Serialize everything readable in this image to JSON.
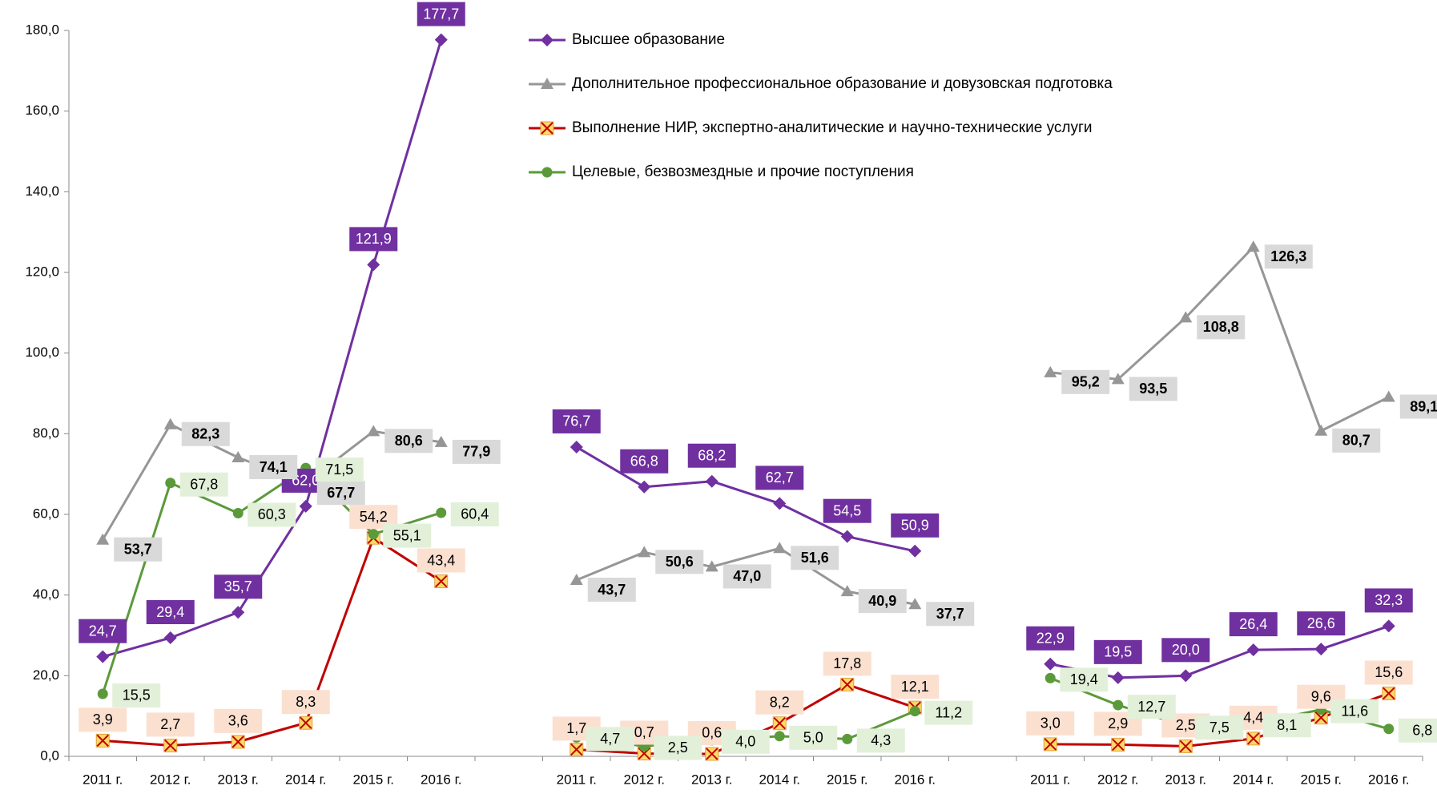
{
  "chart_data": {
    "type": "line",
    "categories": [
      "2011 г.",
      "2012 г.",
      "2013 г.",
      "2014 г.",
      "2015 г.",
      "2016 г.",
      null,
      "2011 г.",
      "2012 г.",
      "2013 г.",
      "2014 г.",
      "2015 г.",
      "2016 г.",
      null,
      "2011 г.",
      "2012 г.",
      "2013 г.",
      "2014 г.",
      "2015 г.",
      "2016 г."
    ],
    "ylim": [
      0,
      180
    ],
    "yticks": [
      {
        "value": 0,
        "label": "0,0"
      },
      {
        "value": 20,
        "label": "20,0"
      },
      {
        "value": 40,
        "label": "40,0"
      },
      {
        "value": 60,
        "label": "60,0"
      },
      {
        "value": 80,
        "label": "80,0"
      },
      {
        "value": 100,
        "label": "100,0"
      },
      {
        "value": 120,
        "label": "120,0"
      },
      {
        "value": 140,
        "label": "140,0"
      },
      {
        "value": 160,
        "label": "160,0"
      },
      {
        "value": 180,
        "label": "180,0"
      }
    ],
    "series": [
      {
        "name": "Высшее образование",
        "color": "#7030a0",
        "marker": "diamond",
        "values": [
          24.7,
          29.4,
          35.7,
          62.0,
          121.9,
          177.7,
          null,
          76.7,
          66.8,
          68.2,
          62.7,
          54.5,
          50.9,
          null,
          22.9,
          19.5,
          20.0,
          26.4,
          26.6,
          32.3
        ],
        "value_labels": [
          "24,7",
          "29,4",
          "35,7",
          "62,0",
          "121,9",
          "177,7",
          null,
          "76,7",
          "66,8",
          "68,2",
          "62,7",
          "54,5",
          "50,9",
          null,
          "22,9",
          "19,5",
          "20,0",
          "26,4",
          "26,6",
          "32,3"
        ]
      },
      {
        "name": "Дополнительное профессиональное образование и довузовская подготовка",
        "color": "#969696",
        "marker": "triangle",
        "values": [
          53.7,
          82.3,
          74.1,
          67.7,
          80.6,
          77.9,
          null,
          43.7,
          50.6,
          47.0,
          51.6,
          40.9,
          37.7,
          null,
          95.2,
          93.5,
          108.8,
          126.3,
          80.7,
          89.1
        ],
        "value_labels": [
          "53,7",
          "82,3",
          "74,1",
          "67,7",
          "80,6",
          "77,9",
          null,
          "43,7",
          "50,6",
          "47,0",
          "51,6",
          "40,9",
          "37,7",
          null,
          "95,2",
          "93,5",
          "108,8",
          "126,3",
          "80,7",
          "89,1"
        ]
      },
      {
        "name": "Выполнение НИР, экспертно-аналитические и научно-технические услуги",
        "color": "#c00000",
        "marker": "x",
        "values": [
          3.9,
          2.7,
          3.6,
          8.3,
          54.2,
          43.4,
          null,
          1.7,
          0.7,
          0.6,
          8.2,
          17.8,
          12.1,
          null,
          3.0,
          2.9,
          2.5,
          4.4,
          9.6,
          15.6
        ],
        "value_labels": [
          "3,9",
          "2,7",
          "3,6",
          "8,3",
          "54,2",
          "43,4",
          null,
          "1,7",
          "0,7",
          "0,6",
          "8,2",
          "17,8",
          "12,1",
          null,
          "3,0",
          "2,9",
          "2,5",
          "4,4",
          "9,6",
          "15,6"
        ]
      },
      {
        "name": "Целевые, безвозмездные и прочие поступления",
        "color": "#5b9a3a",
        "marker": "circle",
        "values": [
          15.5,
          67.8,
          60.3,
          71.5,
          55.1,
          60.4,
          null,
          4.7,
          2.5,
          4.0,
          5.0,
          4.3,
          11.2,
          null,
          19.4,
          12.7,
          7.5,
          8.1,
          11.6,
          6.8
        ],
        "value_labels": [
          "15,5",
          "67,8",
          "60,3",
          "71,5",
          "55,1",
          "60,4",
          null,
          "4,7",
          "2,5",
          "4,0",
          "5,0",
          "4,3",
          "11,2",
          null,
          "19,4",
          "12,7",
          "7,5",
          "8,1",
          "11,6",
          "6,8"
        ]
      }
    ]
  }
}
